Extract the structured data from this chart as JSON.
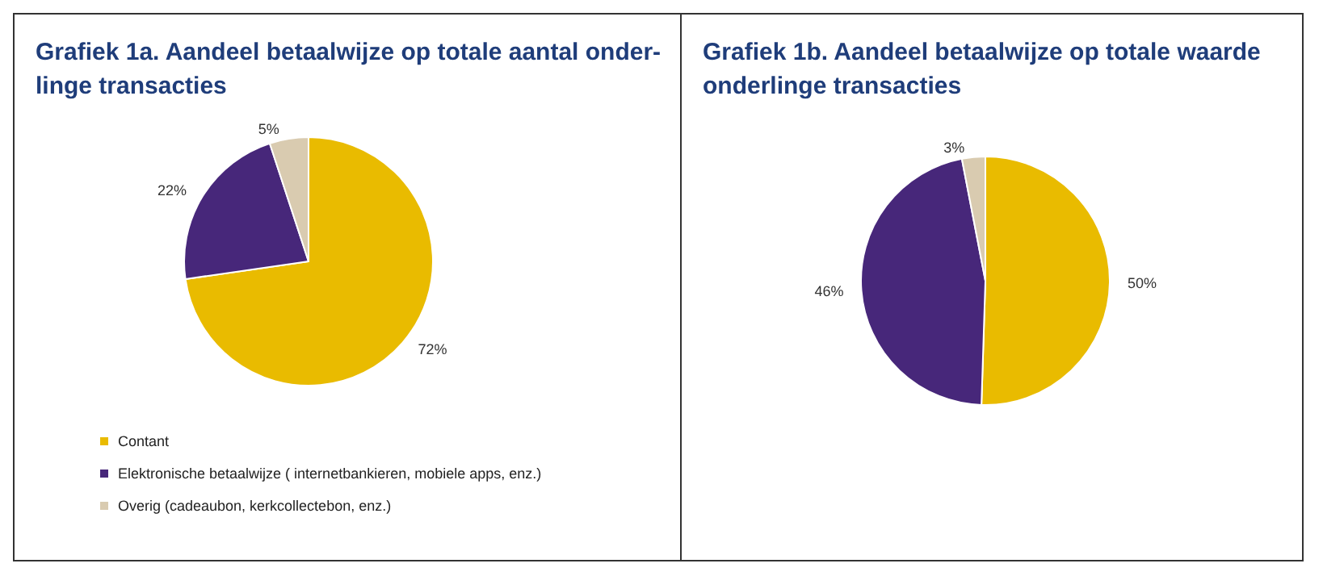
{
  "chart_data": [
    {
      "type": "pie",
      "title": "Grafiek 1a. Aandeel betaalwijze op totale aantal onder-\nlinge transacties",
      "categories": [
        "Contant",
        "Elektronische betaalwijze ( internetbankieren, mobiele apps, enz.)",
        "Overig (cadeaubon, kerkcollectebon, enz.)"
      ],
      "values": [
        72,
        22,
        5
      ],
      "value_labels": [
        "72%",
        "22%",
        "5%"
      ],
      "colors": [
        "#e9bb00",
        "#47277a",
        "#d9cbb0"
      ],
      "legend": "bottom left"
    },
    {
      "type": "pie",
      "title": "Grafiek 1b. Aandeel betaalwijze op totale waarde\nonderlinge transacties",
      "categories": [
        null,
        null,
        null
      ],
      "values": [
        50,
        46,
        3
      ],
      "value_labels": [
        "50%",
        "46%",
        "3%"
      ],
      "colors": [
        "#e9bb00",
        "#47277a",
        "#d9cbb0"
      ],
      "legend": false
    }
  ]
}
